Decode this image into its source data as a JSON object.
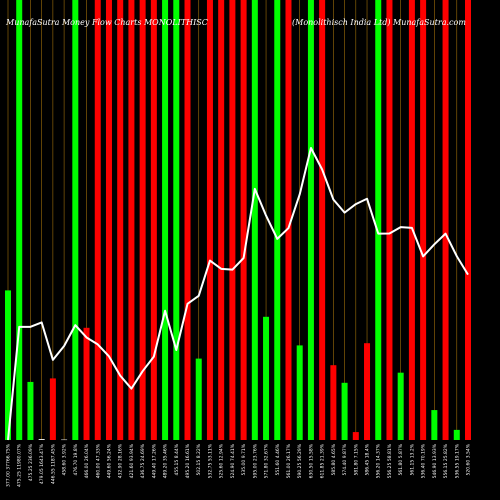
{
  "header": {
    "left": "MunafaSutra Money Flow Charts MONOLITHISC",
    "right": "(Monolithisch India Ltd) MunafaSutra.com"
  },
  "chart_data": {
    "type": "bar",
    "title": "MunafaSutra Money Flow Charts MONOLITHISC",
    "subtitle": "(Monolithisch India Ltd) MunafaSutra.com",
    "categories": [
      "377.00 37766.75%",
      "475.25 11980.07%",
      "475.25 236.09%",
      "479.05 1643.47%",
      "446.55 1187.45%",
      "458.60 3.92%",
      "476.70 19.8%",
      "466.00 26.04%",
      "460.00 47.33%",
      "449.60 56.24%",
      "432.90 28.16%",
      "421.60 93.94%",
      "436.75 24.69%",
      "449.40 17.26%",
      "489.20 35.46%",
      "455.15 8.44%",
      "495.20 16.61%",
      "502.15 8.22%",
      "532.75 53.11%",
      "525.60 12.94%",
      "524.90 74.41%",
      "535.00 9.71%",
      "595.00 23.76%",
      "571.80 32.67%",
      "551.60 4.46%",
      "561.00 26.17%",
      "590.25 56.29%",
      "630.50 15.58%",
      "611.85 21.39%",
      "585.80 4.65%",
      "574.40 9.87%",
      "581.80 7.15%",
      "586.45 18.4%",
      "556.20 14.37%",
      "556.25 58.81%",
      "561.80 5.87%",
      "561.15 13.2%",
      "536.40 70.19%",
      "546.90 13.93%",
      "556.15 25.82%",
      "536.55 19.17%",
      "520.60 3.54%"
    ],
    "series": [
      {
        "values": [
          340,
          1000,
          132,
          2,
          140,
          1,
          1000,
          255,
          1000,
          1000,
          1000,
          1000,
          1000,
          1000,
          1000,
          1000,
          1000,
          185,
          1000,
          1000,
          1000,
          1000,
          1000,
          280,
          1000,
          1000,
          215,
          1000,
          1000,
          170,
          130,
          18,
          220,
          1000,
          1000,
          153,
          1000,
          1000,
          68,
          1000,
          23,
          1000
        ]
      }
    ],
    "bar_colors": [
      "#00ff00",
      "#00ff00",
      "#00ff00",
      "#ffffff",
      "#ff0000",
      "#ffffff",
      "#00ff00",
      "#ff0000",
      "#ff0000",
      "#ff0000",
      "#ff0000",
      "#ff0000",
      "#ff0000",
      "#ff0000",
      "#00ff00",
      "#00ff00",
      "#ff0000",
      "#00ff00",
      "#ff0000",
      "#ff0000",
      "#ff0000",
      "#ff0000",
      "#00ff00",
      "#00ff00",
      "#00ff00",
      "#ff0000",
      "#00ff00",
      "#00ff00",
      "#ff0000",
      "#ff0000",
      "#00ff00",
      "#ff0000",
      "#ff0000",
      "#00ff00",
      "#ff0000",
      "#00ff00",
      "#ff0000",
      "#ff0000",
      "#00ff00",
      "#ff0000",
      "#00ff00",
      "#ff0000"
    ],
    "bar_scale": [
      0,
      1000
    ],
    "price_line": [
      377.0,
      475.25,
      475.25,
      479.05,
      446.55,
      458.6,
      476.7,
      466.0,
      460.0,
      449.6,
      432.9,
      421.6,
      436.75,
      449.4,
      489.2,
      455.15,
      495.2,
      502.15,
      532.75,
      525.6,
      524.9,
      535.0,
      595.0,
      571.8,
      551.6,
      561.0,
      590.25,
      630.5,
      611.85,
      585.8,
      574.4,
      581.8,
      586.45,
      556.2,
      556.25,
      561.8,
      561.15,
      536.4,
      546.9,
      556.15,
      536.55,
      520.6
    ],
    "price_line_color": "#ffffff",
    "background": "#000000",
    "gridlines": "vertical",
    "grid_color": "#a0700a"
  }
}
